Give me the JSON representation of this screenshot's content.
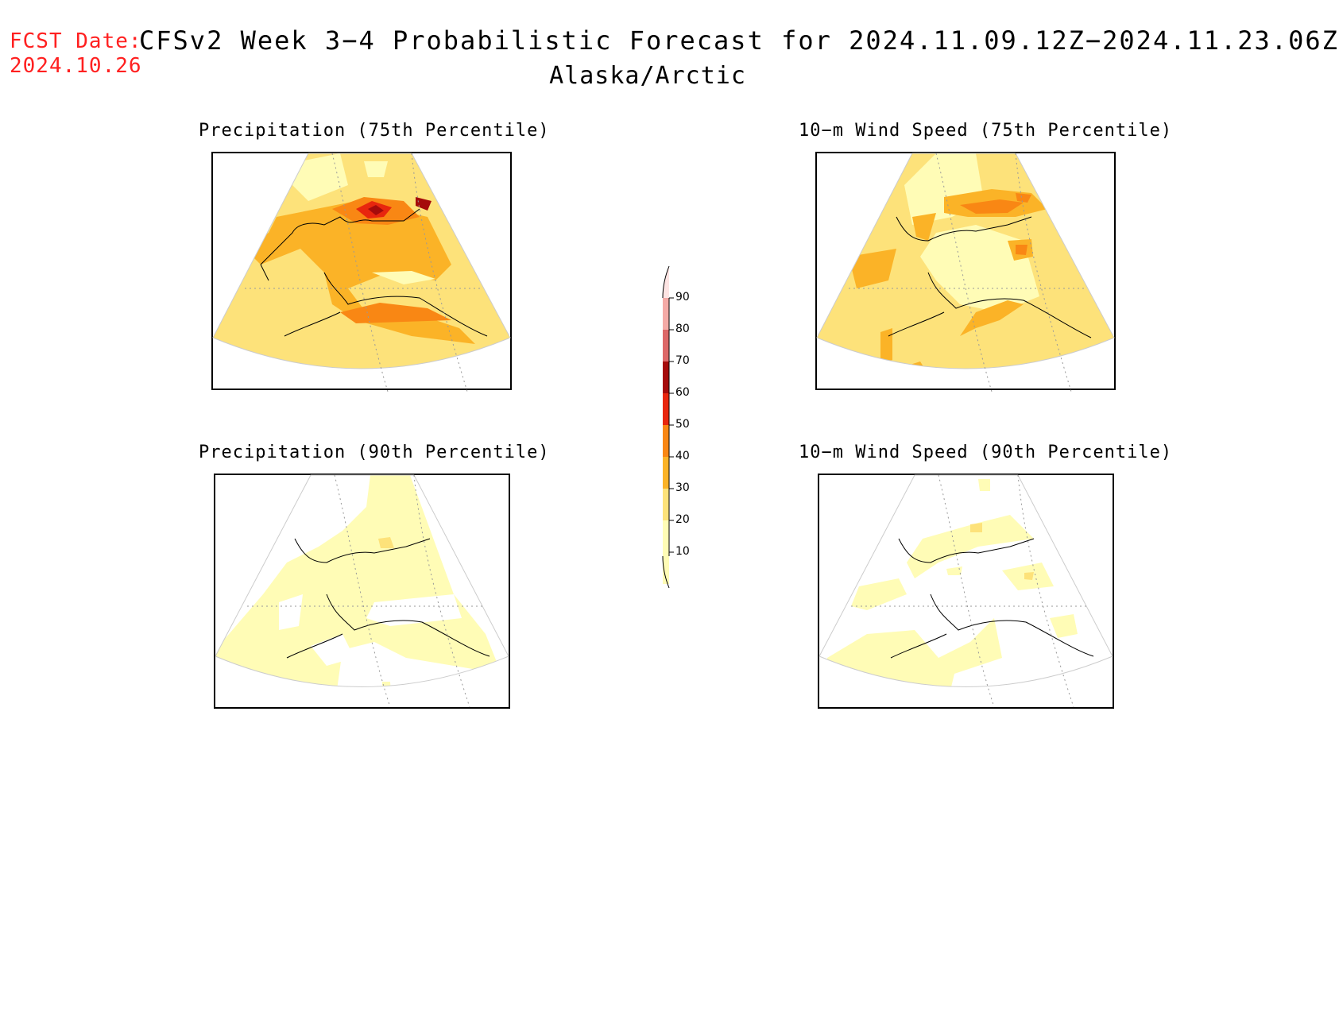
{
  "header": {
    "fcst_label": "FCST Date:",
    "fcst_date": "2024.10.26",
    "title": "CFSv2 Week 3−4 Probabilistic Forecast for 2024.11.09.12Z−2024.11.23.06Z",
    "region": "Alaska/Arctic"
  },
  "panels": [
    {
      "title": "Precipitation (75th Percentile)",
      "variable": "precipitation",
      "percentile": "75th"
    },
    {
      "title": "10−m Wind Speed (75th Percentile)",
      "variable": "wind-speed",
      "percentile": "75th"
    },
    {
      "title": "Precipitation (90th Percentile)",
      "variable": "precipitation",
      "percentile": "90th"
    },
    {
      "title": "10−m Wind Speed (90th Percentile)",
      "variable": "wind-speed",
      "percentile": "90th"
    }
  ],
  "colorbar": {
    "labels": [
      "90",
      "80",
      "70",
      "60",
      "50",
      "40",
      "30",
      "20",
      "10"
    ],
    "colors": {
      "10": "#fffcb6",
      "20": "#fde27a",
      "30": "#fbb327",
      "40": "#f98714",
      "50": "#e8260e",
      "60": "#a50b0b",
      "70": "#dc6868",
      "80": "#f4aaa6",
      "90": "#fde4e3"
    }
  }
}
